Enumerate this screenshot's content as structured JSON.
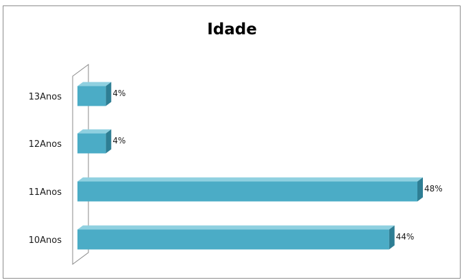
{
  "chart_data": {
    "type": "bar",
    "orientation": "horizontal",
    "style": "3d",
    "title": "Idade",
    "categories": [
      "10Anos",
      "11Anos",
      "12Anos",
      "13Anos"
    ],
    "values": [
      44,
      48,
      4,
      4
    ],
    "value_labels": [
      "44%",
      "48%",
      "4%",
      "4%"
    ],
    "xlim": [
      0,
      48
    ],
    "grid": false,
    "legend": "none",
    "colors": {
      "bar_front": "#4bacc6",
      "bar_top": "#8fd0e0",
      "bar_side": "#2e7e94"
    }
  }
}
